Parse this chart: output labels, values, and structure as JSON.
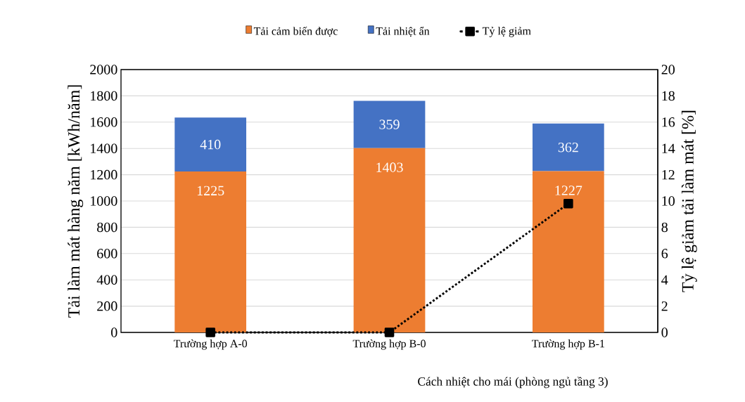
{
  "chart_data": {
    "type": "bar",
    "stacked": true,
    "categories": [
      "Trường hợp A-0",
      "Trường hợp B-0",
      "Trường hợp B-1"
    ],
    "xlabel": "Cách nhiệt cho mái (phòng ngủ tầng 3)",
    "ylabel": "Tải làm mát hàng năm [kWh/năm]",
    "y2label": "Tỷ lệ giảm tải làm mát [%]",
    "ylim": [
      0,
      2000
    ],
    "yticks": [
      0,
      200,
      400,
      600,
      800,
      1000,
      1200,
      1400,
      1600,
      1800,
      2000
    ],
    "y2lim": [
      0,
      20
    ],
    "y2ticks": [
      0,
      2,
      4,
      6,
      8,
      10,
      12,
      14,
      16,
      18,
      20
    ],
    "grid": "y",
    "legend": "top",
    "series": [
      {
        "name": "Tải cảm biến được",
        "color": "#ed7d31",
        "values": [
          1225,
          1403,
          1227
        ],
        "value_labels": [
          "1225",
          "1403",
          "1227"
        ]
      },
      {
        "name": "Tải nhiệt ẩn",
        "color": "#4472c4",
        "values": [
          410,
          359,
          362
        ],
        "value_labels": [
          "410",
          "359",
          "362"
        ]
      },
      {
        "name": "Tỷ lệ giảm",
        "type": "line",
        "axis": "y2",
        "color": "#000000",
        "values": [
          0,
          0,
          9.8
        ],
        "marker": "square",
        "line_style": "dotted"
      }
    ]
  }
}
